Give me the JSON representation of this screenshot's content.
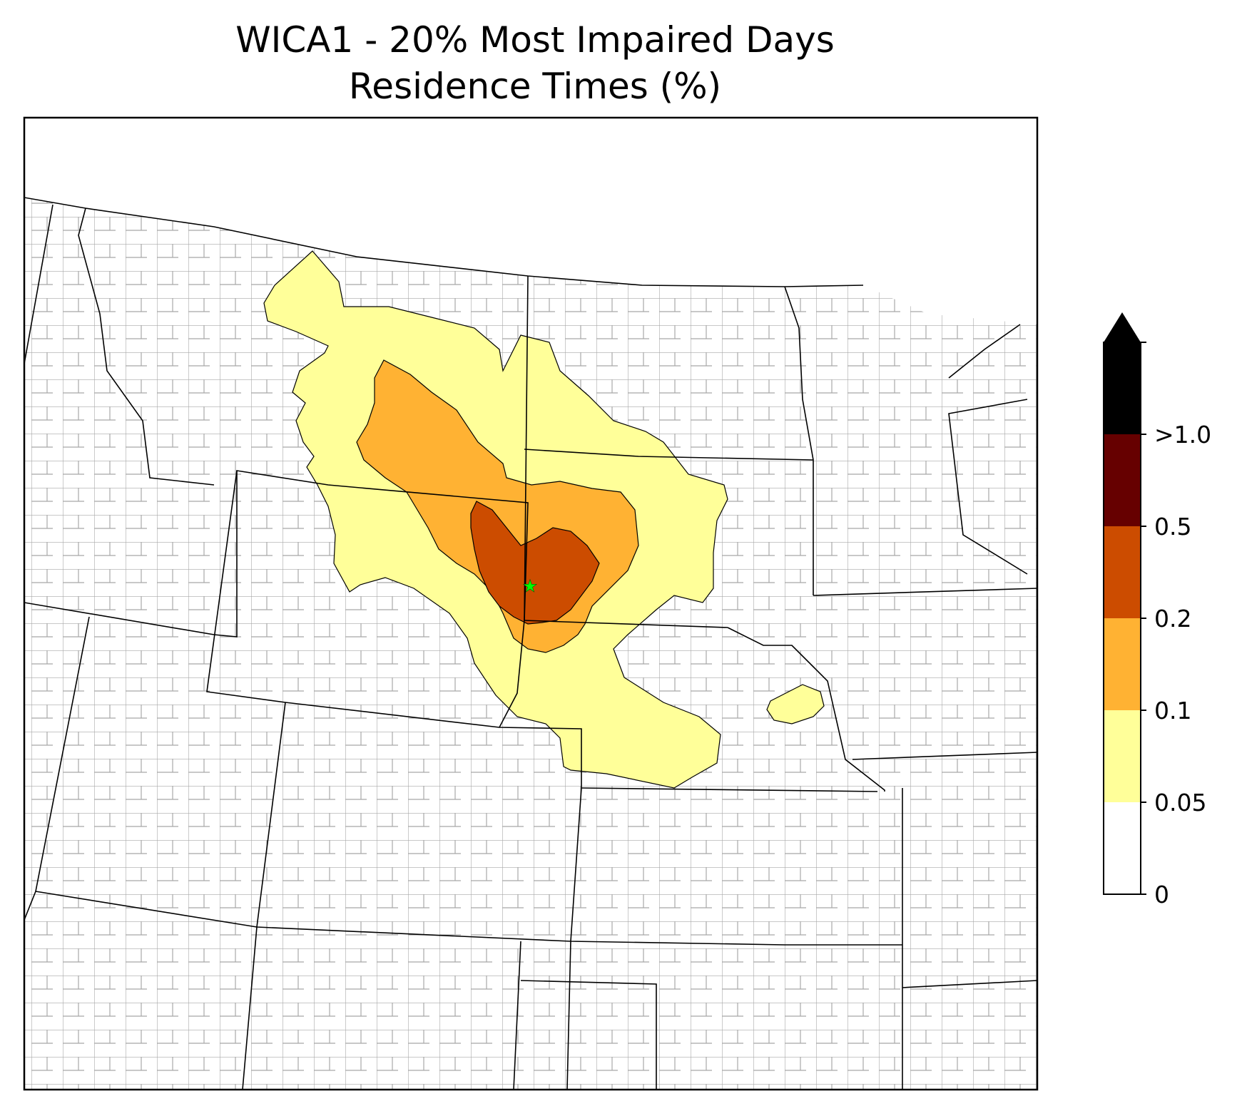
{
  "title": "WICA1 - 20% Most Impaired Days",
  "subtitle": "Residence Times (%)",
  "colorbar": {
    "ticks": [
      {
        "label": "0",
        "color": "#ffffff"
      },
      {
        "label": "0.05",
        "color": "#ffff99"
      },
      {
        "label": "0.1",
        "color": "#ffb233"
      },
      {
        "label": "0.2",
        "color": "#cc4c00"
      },
      {
        "label": "0.5",
        "color": "#660000"
      },
      {
        "label": ">1.0",
        "color": "#000000"
      }
    ],
    "extend": "max"
  },
  "site_marker": {
    "symbol": "star",
    "color": "#00ff00"
  },
  "colors": {
    "state_border": "#000000",
    "county_border": "#a0a0a0",
    "contour_edge": "#000000"
  }
}
